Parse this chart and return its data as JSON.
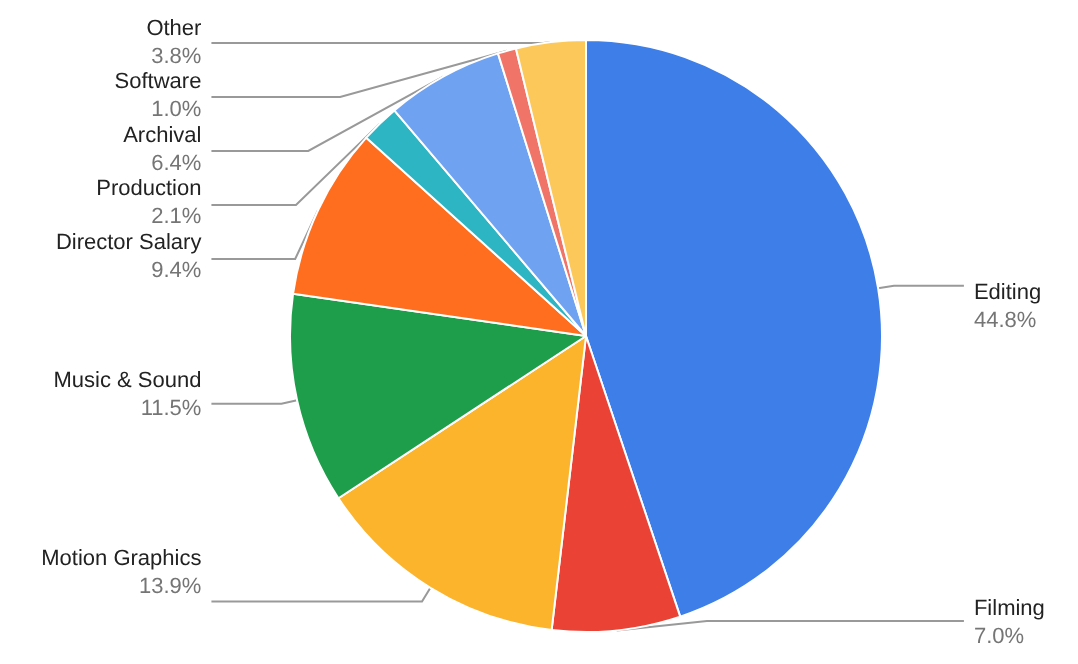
{
  "chart_data": {
    "type": "pie",
    "categories": [
      "Editing",
      "Filming",
      "Motion Graphics",
      "Music & Sound",
      "Director Salary",
      "Production",
      "Archival",
      "Software",
      "Other"
    ],
    "values": [
      44.8,
      7.0,
      13.9,
      11.5,
      9.4,
      2.1,
      6.4,
      1.0,
      3.8
    ],
    "value_labels": [
      "44.8%",
      "7.0%",
      "13.9%",
      "11.5%",
      "9.4%",
      "2.1%",
      "6.4%",
      "1.0%",
      "3.8%"
    ],
    "colors": [
      "#3d7ee8",
      "#ea4335",
      "#fbb42c",
      "#1e9e4a",
      "#ff6d1f",
      "#2db5c4",
      "#6fa3f2",
      "#f07468",
      "#fdc85a"
    ],
    "legend": false
  }
}
